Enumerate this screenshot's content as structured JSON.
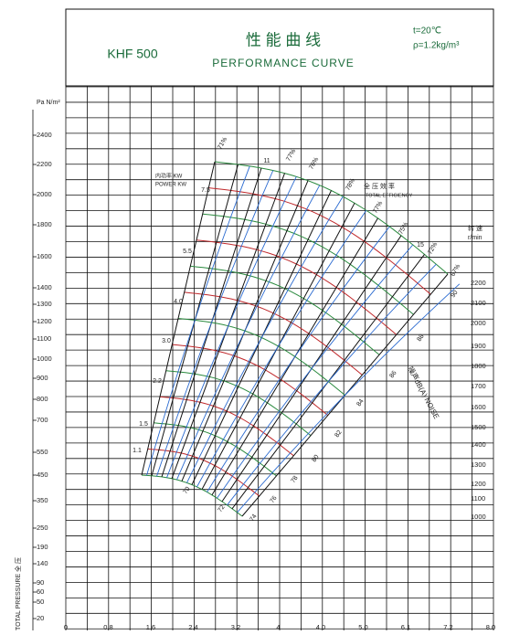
{
  "header": {
    "model": "KHF 500",
    "title_cn": "性 能 曲 线",
    "title_en": "PERFORMANCE CURVE",
    "temperature": "t=20℃",
    "density": "ρ=1.2kg/m³"
  },
  "y_axis": {
    "unit": "Pa N/m²",
    "title": "TOTAL PRESSURE 全 压",
    "ticks": [
      "2400",
      "2200",
      "2000",
      "1800",
      "1600",
      "1400",
      "1300",
      "1200",
      "1100",
      "1000",
      "900",
      "800",
      "700",
      "550",
      "450",
      "350",
      "250",
      "190",
      "140",
      "90",
      "60",
      "50",
      "20"
    ]
  },
  "x_axis": {
    "ticks": [
      "0",
      "0.8",
      "1.6",
      "2.4",
      "3.2",
      "4",
      "4.0",
      "5.0",
      "6.1",
      "7.2",
      "8.0"
    ]
  },
  "speed_axis": {
    "title": "转 速",
    "unit": "r/min",
    "ticks": [
      "2200",
      "2100",
      "2000",
      "1900",
      "1800",
      "1700",
      "1600",
      "1500",
      "1400",
      "1300",
      "1200",
      "1100",
      "1000"
    ]
  },
  "efficiency_labels": {
    "title_cn": "全 压 效 率",
    "title_en": "TOTAL EFFICIENCY",
    "values": [
      "71%",
      "76%",
      "77%",
      "78%",
      "77%",
      "75%",
      "72%",
      "67%"
    ]
  },
  "power_labels": {
    "title_cn": "内功率 KW",
    "title_en": "POWER KW",
    "values": [
      "11",
      "15",
      "7.5",
      "5.5",
      "4.0",
      "3.0",
      "2.2",
      "1.5",
      "1.1"
    ]
  },
  "noise_labels": {
    "title": "噪声dB(A) NOISE",
    "values": [
      "90",
      "88",
      "86",
      "84",
      "82",
      "80",
      "78",
      "76",
      "74",
      "72",
      "70"
    ]
  }
}
